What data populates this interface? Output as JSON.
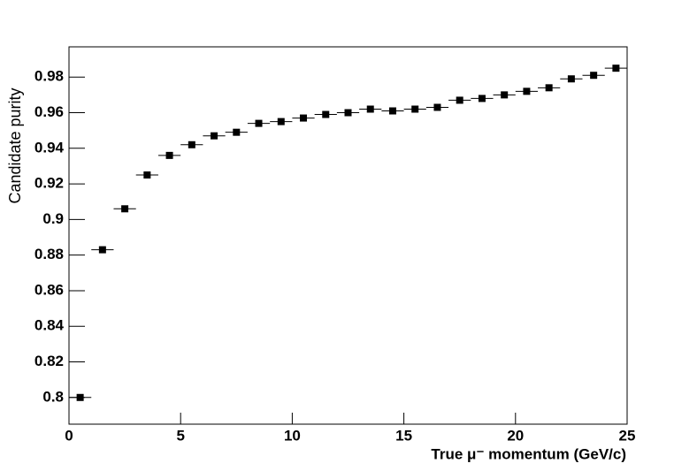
{
  "chart_data": {
    "type": "scatter",
    "ylabel": "Candidate purity",
    "xlabel": "True μ⁻ momentum (GeV/c)",
    "x": [
      0.5,
      1.5,
      2.5,
      3.5,
      4.5,
      5.5,
      6.5,
      7.5,
      8.5,
      9.5,
      10.5,
      11.5,
      12.5,
      13.5,
      14.5,
      15.5,
      16.5,
      17.5,
      18.5,
      19.5,
      20.5,
      21.5,
      22.5,
      23.5,
      24.5
    ],
    "xerr": [
      0.5,
      0.5,
      0.5,
      0.5,
      0.5,
      0.5,
      0.5,
      0.5,
      0.5,
      0.5,
      0.5,
      0.5,
      0.5,
      0.5,
      0.5,
      0.5,
      0.5,
      0.5,
      0.5,
      0.5,
      0.5,
      0.5,
      0.5,
      0.5,
      0.5
    ],
    "values": [
      0.8,
      0.883,
      0.906,
      0.925,
      0.936,
      0.942,
      0.947,
      0.949,
      0.954,
      0.955,
      0.957,
      0.959,
      0.96,
      0.962,
      0.961,
      0.962,
      0.963,
      0.967,
      0.968,
      0.97,
      0.972,
      0.974,
      0.979,
      0.981,
      0.985
    ],
    "color": "#000000",
    "xlim": [
      0,
      25
    ],
    "xticks": [
      0,
      5,
      10,
      15,
      20,
      25
    ],
    "ylim": [
      0.785,
      0.997
    ],
    "yticks": [
      0.8,
      0.82,
      0.84,
      0.86,
      0.88,
      0.9,
      0.92,
      0.94,
      0.96,
      0.98
    ]
  }
}
